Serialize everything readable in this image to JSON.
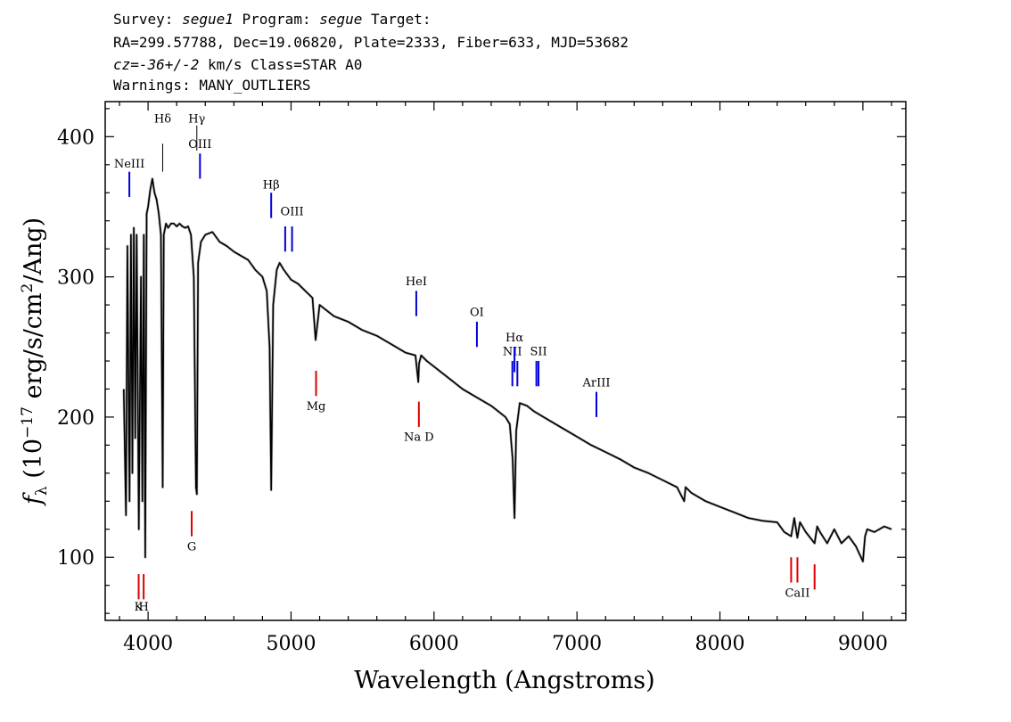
{
  "header": {
    "survey_label": "Survey:",
    "survey": "segue1",
    "program_label": "Program:",
    "program": "segue",
    "target_label": "Target:",
    "line2": "RA=299.57788, Dec=19.06820, Plate=2333, Fiber=633, MJD=53682",
    "cz_label": "cz=",
    "cz_value": "-36+/-2",
    "cz_rest": " km/s Class=STAR A0",
    "line4": "Warnings: MANY_OUTLIERS"
  },
  "chart_data": {
    "type": "line",
    "xlabel": "Wavelength (Angstroms)",
    "ylabel": "f_λ (10^-17 erg/s/cm^2/Ang)",
    "xlim": [
      3700,
      9300
    ],
    "ylim": [
      55,
      425
    ],
    "x_ticks": [
      4000,
      5000,
      6000,
      7000,
      8000,
      9000
    ],
    "y_ticks": [
      100,
      200,
      300,
      400
    ],
    "grid": false,
    "series": [
      {
        "color": "#000000",
        "x": [
          3830,
          3845,
          3855,
          3870,
          3880,
          3890,
          3900,
          3910,
          3920,
          3935,
          3950,
          3960,
          3970,
          3980,
          3990,
          4000,
          4015,
          4030,
          4045,
          4060,
          4075,
          4090,
          4102,
          4110,
          4125,
          4140,
          4160,
          4180,
          4200,
          4220,
          4240,
          4260,
          4280,
          4300,
          4320,
          4335,
          4341,
          4350,
          4370,
          4400,
          4450,
          4500,
          4550,
          4600,
          4650,
          4700,
          4750,
          4800,
          4830,
          4850,
          4861,
          4875,
          4900,
          4920,
          4950,
          5000,
          5050,
          5100,
          5150,
          5172,
          5200,
          5300,
          5400,
          5500,
          5600,
          5700,
          5800,
          5870,
          5890,
          5895,
          5910,
          5950,
          6000,
          6100,
          6200,
          6300,
          6400,
          6500,
          6530,
          6550,
          6563,
          6575,
          6600,
          6650,
          6700,
          6800,
          6900,
          7000,
          7100,
          7200,
          7300,
          7400,
          7500,
          7600,
          7700,
          7750,
          7760,
          7800,
          7900,
          8000,
          8100,
          8200,
          8300,
          8400,
          8450,
          8498,
          8520,
          8542,
          8560,
          8600,
          8662,
          8680,
          8700,
          8750,
          8800,
          8850,
          8900,
          8950,
          9000,
          9015,
          9030,
          9080,
          9150,
          9200
        ],
        "y": [
          220,
          130,
          322,
          140,
          330,
          160,
          335,
          185,
          330,
          120,
          300,
          140,
          330,
          100,
          345,
          350,
          362,
          370,
          360,
          355,
          345,
          330,
          150,
          330,
          338,
          335,
          338,
          338,
          336,
          338,
          336,
          335,
          336,
          330,
          300,
          150,
          145,
          310,
          325,
          330,
          332,
          325,
          322,
          318,
          315,
          312,
          305,
          300,
          290,
          250,
          148,
          280,
          305,
          310,
          305,
          298,
          295,
          290,
          285,
          255,
          280,
          272,
          268,
          262,
          258,
          252,
          246,
          244,
          225,
          238,
          244,
          240,
          236,
          228,
          220,
          214,
          208,
          200,
          195,
          170,
          128,
          190,
          210,
          208,
          204,
          198,
          192,
          186,
          180,
          175,
          170,
          164,
          160,
          155,
          150,
          140,
          150,
          146,
          140,
          136,
          132,
          128,
          126,
          125,
          118,
          115,
          128,
          114,
          125,
          118,
          110,
          122,
          118,
          110,
          120,
          110,
          115,
          108,
          97,
          115,
          120,
          118,
          122,
          120
        ]
      }
    ],
    "line_markers": [
      {
        "label": "NeIII",
        "x": 3869,
        "y0": 357,
        "y1": 375,
        "color": "#0000dd",
        "label_y": 378
      },
      {
        "label": "Hδ",
        "x": 4102,
        "y0": 375,
        "y1": 395,
        "color": "#000000",
        "label_y": 410
      },
      {
        "label": "Hγ",
        "x": 4341,
        "y0": 390,
        "y1": 408,
        "color": "#000000",
        "label_y": 410
      },
      {
        "label": "OIII",
        "x": 4363,
        "y0": 370,
        "y1": 388,
        "color": "#0000dd",
        "label_y": 392
      },
      {
        "label": "Hβ",
        "x": 4861,
        "y0": 342,
        "y1": 360,
        "color": "#0000dd",
        "label_y": 363
      },
      {
        "label": "OIII",
        "x": 4959,
        "y0": 318,
        "y1": 336,
        "color": "#0000dd",
        "label_y": 0
      },
      {
        "label": "OIII",
        "x": 5007,
        "y0": 318,
        "y1": 336,
        "color": "#0000dd",
        "label_y": 344
      },
      {
        "label": "HeI",
        "x": 5876,
        "y0": 272,
        "y1": 290,
        "color": "#0000dd",
        "label_y": 294
      },
      {
        "label": "OI",
        "x": 6300,
        "y0": 250,
        "y1": 268,
        "color": "#0000dd",
        "label_y": 272
      },
      {
        "label": "NII",
        "x": 6548,
        "y0": 222,
        "y1": 240,
        "color": "#0000dd",
        "label_y": 244
      },
      {
        "label": "Hα",
        "x": 6563,
        "y0": 232,
        "y1": 250,
        "color": "#0000dd",
        "label_y": 254
      },
      {
        "label": "NII",
        "x": 6583,
        "y0": 222,
        "y1": 240,
        "color": "#0000dd",
        "label_y": 0
      },
      {
        "label": "SII",
        "x": 6716,
        "y0": 222,
        "y1": 240,
        "color": "#0000dd",
        "label_y": 0
      },
      {
        "label": "SII",
        "x": 6731,
        "y0": 222,
        "y1": 240,
        "color": "#0000dd",
        "label_y": 244
      },
      {
        "label": "ArIII",
        "x": 7136,
        "y0": 200,
        "y1": 218,
        "color": "#0000dd",
        "label_y": 222
      },
      {
        "label": "K",
        "x": 3934,
        "y0": 70,
        "y1": 88,
        "color": "#dd0000",
        "label_y": 62
      },
      {
        "label": "H",
        "x": 3969,
        "y0": 70,
        "y1": 88,
        "color": "#dd0000",
        "label_y": 62
      },
      {
        "label": "G",
        "x": 4305,
        "y0": 115,
        "y1": 133,
        "color": "#dd0000",
        "label_y": 105
      },
      {
        "label": "Mg",
        "x": 5175,
        "y0": 215,
        "y1": 233,
        "color": "#dd0000",
        "label_y": 205
      },
      {
        "label": "Na D",
        "x": 5894,
        "y0": 193,
        "y1": 211,
        "color": "#dd0000",
        "label_y": 183
      },
      {
        "label": "CaII",
        "x": 8498,
        "y0": 82,
        "y1": 100,
        "color": "#dd0000",
        "label_y": 0
      },
      {
        "label": "CaII",
        "x": 8542,
        "y0": 82,
        "y1": 100,
        "color": "#dd0000",
        "label_y": 72
      },
      {
        "label": "CaII",
        "x": 8662,
        "y0": 77,
        "y1": 95,
        "color": "#dd0000",
        "label_y": 0
      }
    ]
  }
}
